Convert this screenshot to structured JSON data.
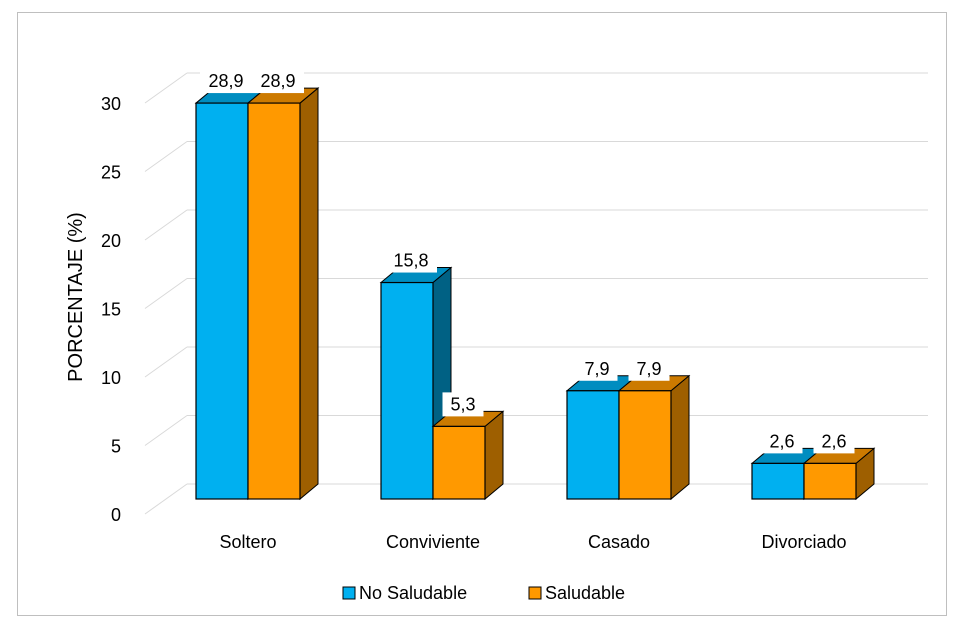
{
  "chart_data": {
    "type": "bar",
    "categories": [
      "Soltero",
      "Conviviente",
      "Casado",
      "Divorciado"
    ],
    "series": [
      {
        "name": "No Saludable",
        "values": [
          28.9,
          15.8,
          7.9,
          2.6
        ],
        "labels": [
          "28,9",
          "15,8",
          "7,9",
          "2,6"
        ],
        "color": "#00B0F0"
      },
      {
        "name": "Saludable",
        "values": [
          28.9,
          5.3,
          7.9,
          2.6
        ],
        "labels": [
          "28,9",
          "5,3",
          "7,9",
          "2,6"
        ],
        "color": "#FF9900"
      }
    ],
    "ylabel": "PORCENTAJE (%)",
    "xlabel": "",
    "ylim": [
      0,
      30
    ],
    "yticks": [
      0,
      5,
      10,
      15,
      20,
      25,
      30
    ],
    "grid": true,
    "legend": "bottom"
  }
}
